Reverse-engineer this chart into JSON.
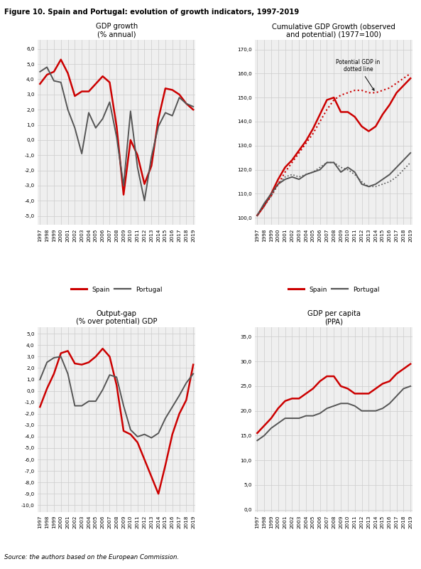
{
  "title": "Figure 10. Spain and Portugal: evolution of growth indicators, 1997-2019",
  "source": "Source: the authors based on the European Commission.",
  "years": [
    1997,
    1998,
    1999,
    2000,
    2001,
    2002,
    2003,
    2004,
    2005,
    2006,
    2007,
    2008,
    2009,
    2010,
    2011,
    2012,
    2013,
    2014,
    2015,
    2016,
    2017,
    2018,
    2019
  ],
  "gdp_growth_spain": [
    3.7,
    4.3,
    4.5,
    5.3,
    4.4,
    2.9,
    3.2,
    3.2,
    3.7,
    4.2,
    3.8,
    0.9,
    -3.6,
    0.0,
    -1.0,
    -2.9,
    -1.7,
    1.4,
    3.4,
    3.3,
    3.0,
    2.4,
    2.0
  ],
  "gdp_growth_portugal": [
    4.5,
    4.8,
    3.9,
    3.8,
    2.0,
    0.8,
    -0.9,
    1.8,
    0.8,
    1.4,
    2.5,
    0.2,
    -3.0,
    1.9,
    -1.8,
    -4.0,
    -1.1,
    0.9,
    1.8,
    1.6,
    2.8,
    2.4,
    2.2
  ],
  "cum_gdp_spain": [
    101,
    105,
    110,
    116,
    121,
    124,
    128,
    132,
    137,
    143,
    149,
    150,
    144,
    144,
    142,
    138,
    136,
    138,
    143,
    147,
    152,
    155,
    158
  ],
  "cum_gdp_portugal": [
    101,
    106,
    110,
    114,
    116,
    117,
    116,
    118,
    119,
    120,
    123,
    123,
    119,
    121,
    119,
    114,
    113,
    114,
    116,
    118,
    121,
    124,
    127
  ],
  "cum_pot_spain": [
    101,
    105,
    109,
    114,
    119,
    123,
    127,
    131,
    135,
    140,
    145,
    149,
    151,
    152,
    153,
    153,
    152,
    152,
    153,
    154,
    156,
    158,
    160
  ],
  "cum_pot_portugal": [
    101,
    105,
    109,
    114,
    117,
    118,
    117,
    118,
    119,
    121,
    123,
    123,
    121,
    120,
    118,
    115,
    113,
    113,
    114,
    115,
    117,
    120,
    123
  ],
  "output_gap_spain": [
    -1.4,
    0.2,
    1.5,
    3.3,
    3.5,
    2.4,
    2.3,
    2.5,
    3.0,
    3.7,
    3.0,
    0.5,
    -3.5,
    -3.8,
    -4.5,
    -6.0,
    -7.5,
    -9.0,
    -6.5,
    -3.8,
    -2.0,
    -0.8,
    2.3
  ],
  "output_gap_portugal": [
    1.0,
    2.5,
    2.9,
    3.0,
    1.5,
    -1.3,
    -1.3,
    -0.9,
    -0.9,
    0.1,
    1.4,
    1.2,
    -1.3,
    -3.4,
    -4.0,
    -3.8,
    -4.1,
    -3.7,
    -2.4,
    -1.4,
    -0.4,
    0.7,
    1.5
  ],
  "gdp_per_capita_spain": [
    15.5,
    17.0,
    18.5,
    20.5,
    22.0,
    22.5,
    22.5,
    23.5,
    24.5,
    26.0,
    27.0,
    27.0,
    25.0,
    24.5,
    23.5,
    23.5,
    23.5,
    24.5,
    25.5,
    26.0,
    27.5,
    28.5,
    29.5
  ],
  "gdp_per_capita_portugal": [
    14.0,
    15.0,
    16.5,
    17.5,
    18.5,
    18.5,
    18.5,
    19.0,
    19.0,
    19.5,
    20.5,
    21.0,
    21.5,
    21.5,
    21.0,
    20.0,
    20.0,
    20.0,
    20.5,
    21.5,
    23.0,
    24.5,
    25.0
  ],
  "color_spain": "#cc0000",
  "color_portugal": "#555555",
  "color_grid": "#cccccc",
  "bg_color": "#efefef"
}
